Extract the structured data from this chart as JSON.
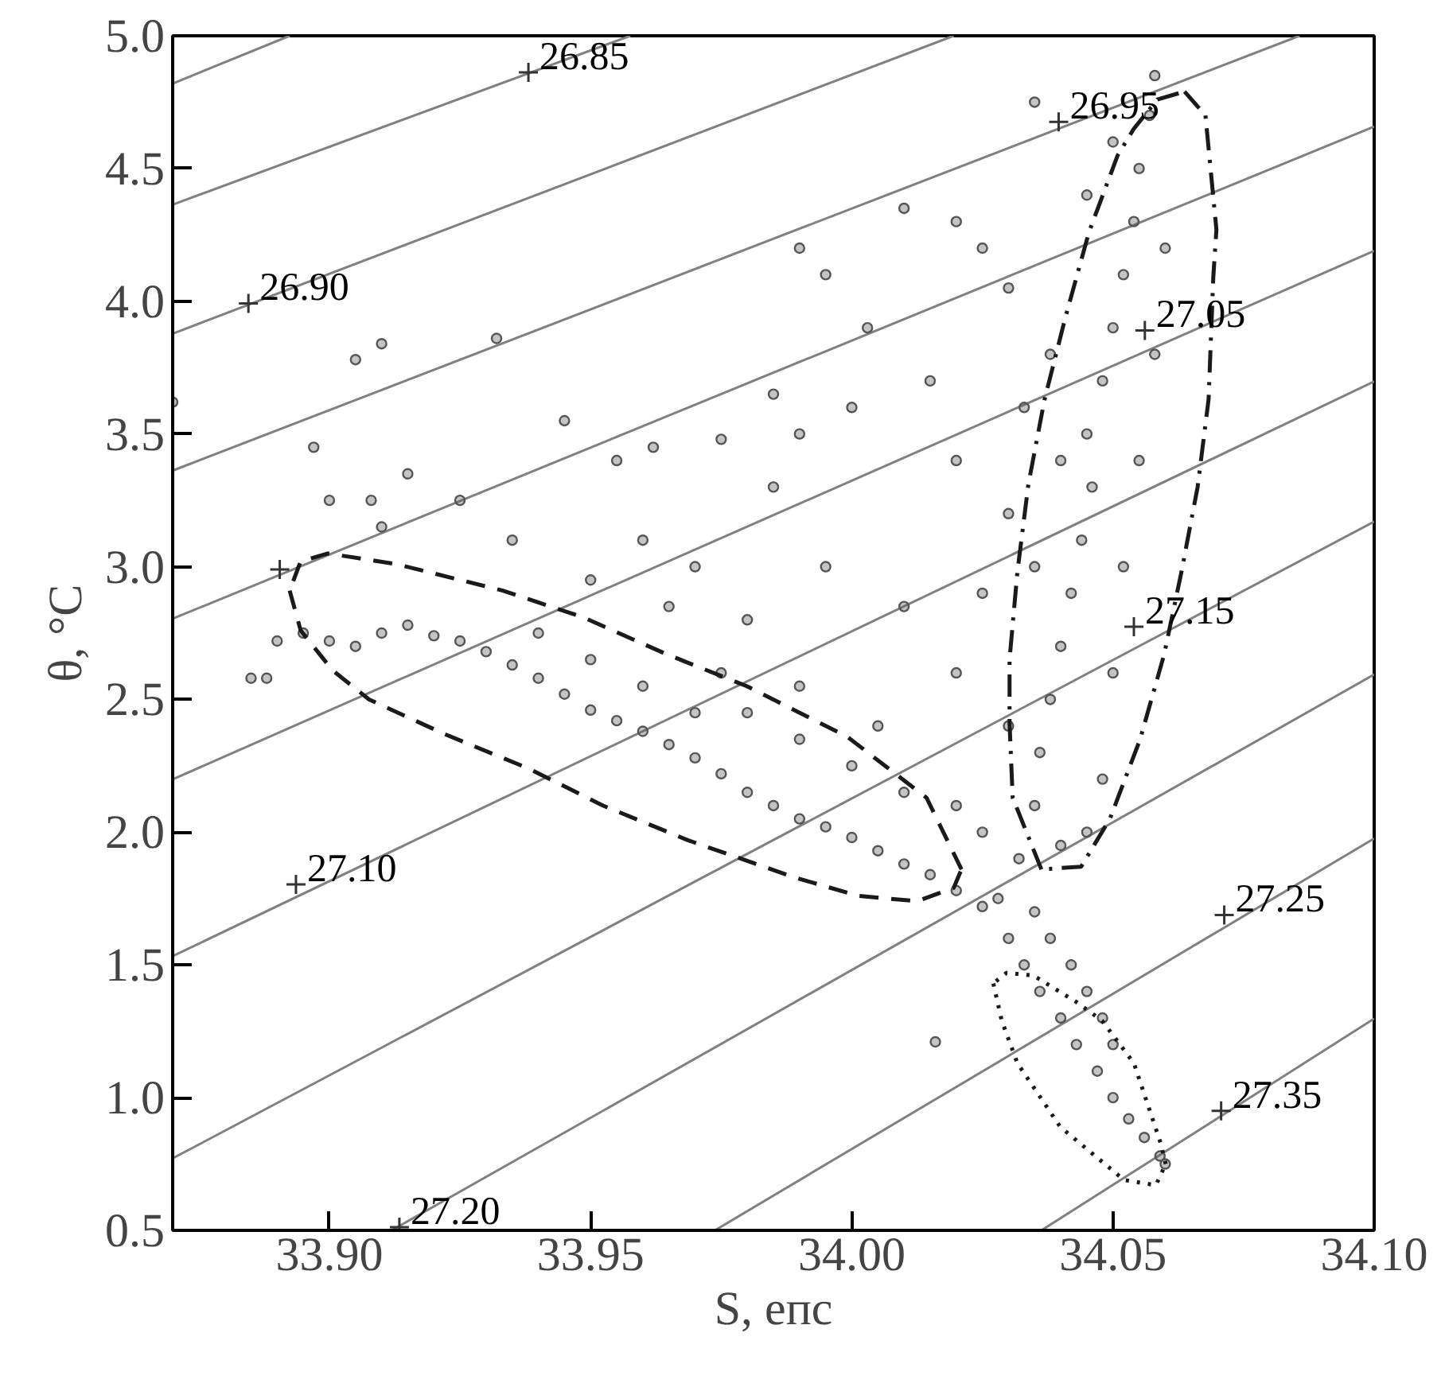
{
  "chart_data": {
    "type": "scatter",
    "xlabel": "S, епс",
    "ylabel": "θ, °C",
    "marker": "circle",
    "xlim": [
      33.87,
      34.1
    ],
    "ylim": [
      0.5,
      5.0
    ],
    "xticks": [
      {
        "value": 33.9,
        "label": "33.90"
      },
      {
        "value": 33.95,
        "label": "33.95"
      },
      {
        "value": 34.0,
        "label": "34.00"
      },
      {
        "value": 34.05,
        "label": "34.05"
      },
      {
        "value": 34.1,
        "label": "34.10"
      }
    ],
    "yticks": [
      {
        "value": 0.5,
        "label": "0.5"
      },
      {
        "value": 1.0,
        "label": "1.0"
      },
      {
        "value": 1.5,
        "label": "1.5"
      },
      {
        "value": 2.0,
        "label": "2.0"
      },
      {
        "value": 2.5,
        "label": "2.5"
      },
      {
        "value": 3.0,
        "label": "3.0"
      },
      {
        "value": 3.5,
        "label": "3.5"
      },
      {
        "value": 4.0,
        "label": "4.0"
      },
      {
        "value": 4.5,
        "label": "4.5"
      },
      {
        "value": 5.0,
        "label": "5.0"
      }
    ],
    "series": [
      {
        "type": "line",
        "marker": "none",
        "color": "#808080",
        "x": [
          33.87,
          33.8924
        ],
        "values": [
          4.82,
          5.0
        ]
      },
      {
        "type": "line",
        "marker": "none",
        "color": "#808080",
        "x": [
          33.87,
          33.9576
        ],
        "values": [
          4.364,
          5.0
        ]
      },
      {
        "type": "line",
        "marker": "none",
        "color": "#808080",
        "x": [
          33.87,
          34.0195
        ],
        "values": [
          3.878,
          5.0
        ]
      },
      {
        "type": "line",
        "marker": "none",
        "color": "#808080",
        "x": [
          33.87,
          34.0857
        ],
        "values": [
          3.362,
          5.0
        ]
      },
      {
        "type": "line",
        "marker": "none",
        "color": "#808080",
        "x": [
          33.87,
          34.1
        ],
        "values": [
          2.804,
          4.658
        ]
      },
      {
        "type": "line",
        "marker": "none",
        "color": "#808080",
        "x": [
          33.87,
          34.1
        ],
        "values": [
          2.199,
          4.19
        ]
      },
      {
        "type": "line",
        "marker": "none",
        "color": "#808080",
        "x": [
          33.87,
          34.1
        ],
        "values": [
          1.533,
          3.698
        ]
      },
      {
        "type": "line",
        "marker": "none",
        "color": "#808080",
        "x": [
          33.87,
          34.1
        ],
        "values": [
          0.771,
          3.17
        ]
      },
      {
        "type": "line",
        "marker": "none",
        "color": "#808080",
        "x": [
          33.9119,
          34.1
        ],
        "values": [
          0.5,
          2.594
        ]
      },
      {
        "type": "line",
        "marker": "none",
        "color": "#808080",
        "x": [
          33.9738,
          34.1
        ],
        "values": [
          0.5,
          1.976
        ]
      },
      {
        "type": "line",
        "marker": "none",
        "color": "#808080",
        "x": [
          34.0363,
          34.1
        ],
        "values": [
          0.5,
          1.298
        ]
      },
      {
        "color": "#555555",
        "x": [
          33.885,
          33.888,
          33.89,
          33.895,
          33.9,
          33.905,
          33.91,
          33.915,
          33.92,
          33.925,
          33.93,
          33.935,
          33.94,
          33.945,
          33.95,
          33.955,
          33.96,
          33.965,
          33.97,
          33.975,
          33.98,
          33.985,
          33.99,
          33.995,
          34.0,
          34.005,
          34.01,
          34.015,
          34.02,
          34.025,
          33.94,
          33.95,
          33.96,
          33.97,
          33.98,
          33.99,
          34.0,
          34.01,
          34.02,
          34.025,
          33.975,
          33.99,
          34.005,
          34.03,
          34.033,
          34.036,
          34.04,
          34.043,
          34.047,
          34.05,
          34.053,
          34.056,
          34.059,
          34.06,
          34.035,
          34.038,
          34.042,
          34.045,
          34.048,
          34.05,
          34.028,
          34.016,
          34.032,
          34.035,
          34.036,
          34.038,
          34.04,
          34.042,
          34.044,
          34.046,
          34.045,
          34.048,
          34.05,
          34.052,
          34.054,
          34.055,
          34.057,
          34.058,
          34.05,
          34.045,
          34.06,
          34.058,
          34.055,
          34.052,
          34.05,
          34.048,
          34.045,
          34.04,
          34.04,
          34.038,
          34.035,
          34.03,
          33.87,
          33.897,
          33.9,
          33.908,
          33.91,
          33.915,
          33.905,
          33.91,
          33.932,
          33.925,
          33.935,
          33.945,
          33.955,
          33.962,
          33.96,
          33.97,
          33.975,
          33.985,
          33.99,
          33.985,
          33.99,
          33.995,
          34.003,
          34.01,
          34.02,
          34.025,
          34.03,
          34.0,
          34.015,
          34.02,
          34.03,
          33.995,
          33.98,
          34.01,
          34.02,
          33.965,
          33.95,
          34.035,
          34.033,
          34.025
        ],
        "values": [
          2.58,
          2.58,
          2.72,
          2.75,
          2.72,
          2.7,
          2.75,
          2.78,
          2.74,
          2.72,
          2.68,
          2.63,
          2.58,
          2.52,
          2.46,
          2.42,
          2.38,
          2.33,
          2.28,
          2.22,
          2.15,
          2.1,
          2.05,
          2.02,
          1.98,
          1.93,
          1.88,
          1.84,
          1.78,
          1.72,
          2.75,
          2.65,
          2.55,
          2.45,
          2.45,
          2.35,
          2.25,
          2.15,
          2.1,
          2.0,
          2.6,
          2.55,
          2.4,
          1.6,
          1.5,
          1.4,
          1.3,
          1.2,
          1.1,
          1.0,
          0.92,
          0.85,
          0.78,
          0.75,
          1.7,
          1.6,
          1.5,
          1.4,
          1.3,
          1.2,
          1.75,
          1.21,
          1.9,
          2.1,
          2.3,
          2.5,
          2.7,
          2.9,
          3.1,
          3.3,
          3.5,
          3.7,
          3.9,
          4.1,
          4.3,
          4.5,
          4.7,
          4.85,
          4.6,
          4.4,
          4.2,
          3.8,
          3.4,
          3.0,
          2.6,
          2.2,
          2.0,
          1.95,
          3.4,
          3.8,
          3.0,
          2.4,
          3.62,
          3.45,
          3.25,
          3.25,
          3.15,
          3.35,
          3.78,
          3.84,
          3.86,
          3.25,
          3.1,
          3.55,
          3.4,
          3.45,
          3.1,
          3.0,
          3.48,
          3.3,
          3.5,
          3.65,
          4.2,
          4.1,
          3.9,
          4.35,
          4.3,
          4.2,
          4.05,
          3.6,
          3.7,
          3.4,
          3.2,
          3.0,
          2.8,
          2.85,
          2.6,
          2.85,
          2.95,
          4.75,
          3.6,
          2.9
        ]
      },
      {
        "type": "scatter",
        "marker": "cross",
        "color": "#333333",
        "x": [
          33.9381,
          33.8845,
          34.0396,
          33.8905,
          34.0561,
          34.054,
          33.8936,
          33.9134,
          34.0713,
          34.0707
        ],
        "values": [
          4.862,
          3.992,
          4.676,
          2.99,
          3.89,
          2.774,
          1.803,
          0.512,
          1.688,
          0.95
        ]
      },
      {
        "type": "line",
        "marker": "none",
        "line_style": "dashed",
        "color": "#1a1a1a",
        "x": [
          34.021,
          34.0143,
          33.9991,
          33.9799,
          33.9646,
          33.9485,
          33.9332,
          33.9128,
          33.8997,
          33.8945,
          33.8924
        ],
        "values": [
          1.86,
          2.13,
          2.36,
          2.55,
          2.67,
          2.81,
          2.91,
          3.01,
          3.05,
          3.02,
          2.91
        ]
      },
      {
        "type": "line",
        "marker": "none",
        "line_style": "dashed",
        "color": "#1a1a1a",
        "x": [
          33.8924,
          33.8945,
          33.9006,
          33.9076,
          33.922,
          33.9381,
          33.9524,
          33.9686,
          33.989,
          34.0012,
          34.0125,
          34.0195,
          34.021
        ],
        "values": [
          2.91,
          2.76,
          2.61,
          2.5,
          2.37,
          2.24,
          2.1,
          1.97,
          1.83,
          1.76,
          1.74,
          1.79,
          1.86
        ]
      },
      {
        "type": "line",
        "marker": "none",
        "line_style": "dashdot",
        "color": "#1a1a1a",
        "x": [
          34.0637,
          34.0677,
          34.0698,
          34.0692,
          34.0683,
          34.0662,
          34.0631,
          34.0598,
          34.0552,
          34.0494,
          34.0439,
          34.0363
        ],
        "values": [
          4.79,
          4.7,
          4.27,
          4.09,
          3.63,
          3.3,
          2.98,
          2.67,
          2.35,
          2.05,
          1.87,
          1.86
        ]
      },
      {
        "type": "line",
        "marker": "none",
        "line_style": "dashdot",
        "color": "#1a1a1a",
        "x": [
          34.0363,
          34.0308,
          34.0302,
          34.0302,
          34.0317,
          34.0338,
          34.0369,
          34.0409,
          34.0454,
          34.0509,
          34.054,
          34.0585,
          34.0637
        ],
        "values": [
          1.86,
          2.13,
          2.41,
          2.65,
          2.98,
          3.31,
          3.63,
          3.94,
          4.26,
          4.55,
          4.65,
          4.76,
          4.79
        ]
      },
      {
        "type": "line",
        "marker": "none",
        "line_style": "dotted",
        "color": "#1a1a1a",
        "x": [
          34.0271,
          34.0287,
          34.0317,
          34.0399,
          34.0521,
          34.0582,
          34.0601
        ],
        "values": [
          1.43,
          1.29,
          1.13,
          0.89,
          0.69,
          0.67,
          0.75
        ]
      },
      {
        "type": "line",
        "marker": "none",
        "line_style": "dotted",
        "color": "#1a1a1a",
        "x": [
          34.0601,
          34.0591,
          34.054,
          34.0479,
          34.043,
          34.0348,
          34.0296,
          34.0271
        ],
        "values": [
          0.75,
          0.83,
          1.13,
          1.29,
          1.36,
          1.46,
          1.47,
          1.43
        ]
      }
    ],
    "annotations": [
      {
        "text": "26.85",
        "x": 33.9381,
        "y": 4.862
      },
      {
        "text": "26.90",
        "x": 33.8845,
        "y": 3.992
      },
      {
        "text": "26.95",
        "x": 34.0396,
        "y": 4.676
      },
      {
        "text": "27.05",
        "x": 34.0561,
        "y": 3.89
      },
      {
        "text": "27.15",
        "x": 34.054,
        "y": 2.774
      },
      {
        "text": "27.10",
        "x": 33.8936,
        "y": 1.803
      },
      {
        "text": "27.20",
        "x": 33.9134,
        "y": 0.512
      },
      {
        "text": "27.25",
        "x": 34.0713,
        "y": 1.688
      },
      {
        "text": "27.35",
        "x": 34.0707,
        "y": 0.95
      }
    ]
  }
}
